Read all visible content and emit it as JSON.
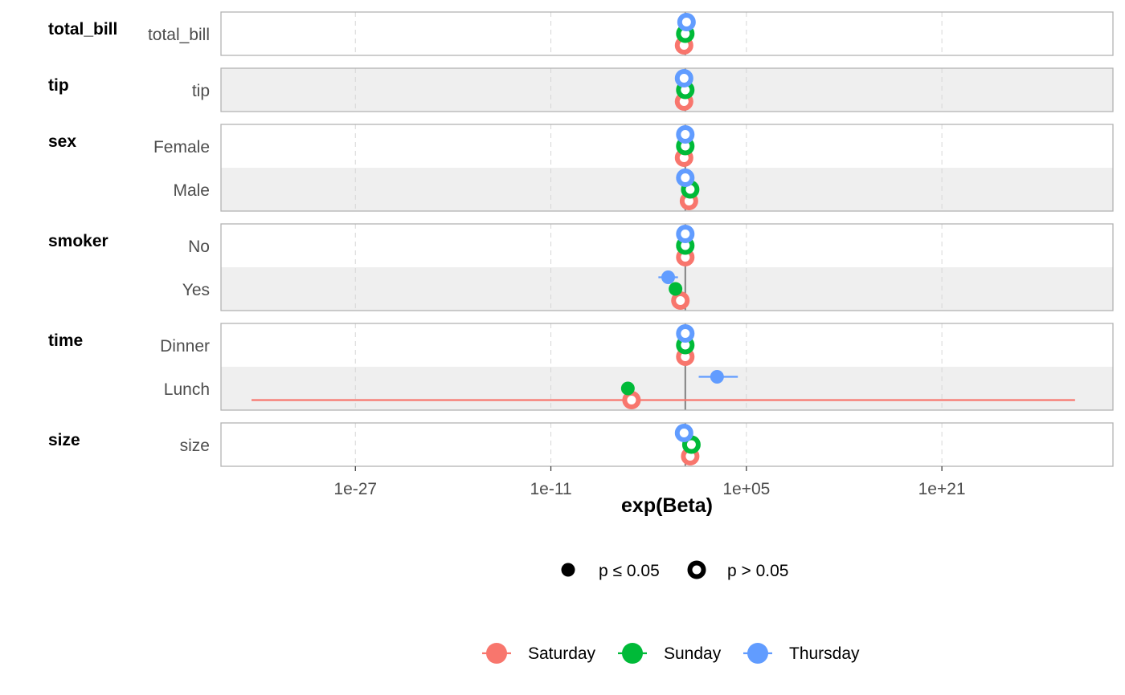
{
  "chart_data": {
    "type": "forest",
    "xlabel": "exp(Beta)",
    "x_scale": "log10",
    "xlim_log10": [
      -38,
      35
    ],
    "x_ticks": [
      {
        "value_log10": -27,
        "label": "1e-27"
      },
      {
        "value_log10": -11,
        "label": "1e-11"
      },
      {
        "value_log10": 5,
        "label": "1e+05"
      },
      {
        "value_log10": 21,
        "label": "1e+21"
      }
    ],
    "reference_line": 1,
    "grid": "vertical-dashed",
    "series": [
      {
        "name": "Saturday",
        "color": "#F8766D"
      },
      {
        "name": "Sunday",
        "color": "#00BA38"
      },
      {
        "name": "Thursday",
        "color": "#619CFF"
      }
    ],
    "significance_legend": [
      {
        "label": "p ≤ 0.05",
        "shape": "filled"
      },
      {
        "label": "p > 0.05",
        "shape": "hollow"
      }
    ],
    "legend_position": "bottom",
    "groups": [
      {
        "name": "total_bill",
        "terms": [
          {
            "label": "total_bill",
            "estimates": [
              {
                "series": "Saturday",
                "log10": -0.1,
                "lo": -0.2,
                "hi": 0.1,
                "significant": false
              },
              {
                "series": "Sunday",
                "log10": 0.0,
                "lo": -0.1,
                "hi": 0.1,
                "significant": false
              },
              {
                "series": "Thursday",
                "log10": 0.1,
                "lo": 0.0,
                "hi": 0.2,
                "significant": false
              }
            ]
          }
        ]
      },
      {
        "name": "tip",
        "terms": [
          {
            "label": "tip",
            "estimates": [
              {
                "series": "Saturday",
                "log10": -0.1,
                "lo": -0.4,
                "hi": 0.3,
                "significant": false
              },
              {
                "series": "Sunday",
                "log10": 0.0,
                "lo": -0.3,
                "hi": 0.3,
                "significant": false
              },
              {
                "series": "Thursday",
                "log10": -0.1,
                "lo": -0.4,
                "hi": 0.2,
                "significant": false
              }
            ]
          }
        ]
      },
      {
        "name": "sex",
        "terms": [
          {
            "label": "Female",
            "estimates": [
              {
                "series": "Saturday",
                "log10": -0.1,
                "lo": -0.5,
                "hi": 0.3,
                "significant": false
              },
              {
                "series": "Sunday",
                "log10": 0.0,
                "lo": -0.4,
                "hi": 0.4,
                "significant": false
              },
              {
                "series": "Thursday",
                "log10": 0.0,
                "lo": -0.4,
                "hi": 0.4,
                "significant": false
              }
            ]
          },
          {
            "label": "Male",
            "estimates": [
              {
                "series": "Saturday",
                "log10": 0.3,
                "lo": -0.2,
                "hi": 0.8,
                "significant": false
              },
              {
                "series": "Sunday",
                "log10": 0.4,
                "lo": 0.0,
                "hi": 0.8,
                "significant": false
              },
              {
                "series": "Thursday",
                "log10": 0.0,
                "lo": -0.4,
                "hi": 0.4,
                "significant": false
              }
            ]
          }
        ]
      },
      {
        "name": "smoker",
        "terms": [
          {
            "label": "No",
            "estimates": [
              {
                "series": "Saturday",
                "log10": 0.0,
                "lo": -0.3,
                "hi": 0.3,
                "significant": false
              },
              {
                "series": "Sunday",
                "log10": 0.0,
                "lo": -0.3,
                "hi": 0.3,
                "significant": false
              },
              {
                "series": "Thursday",
                "log10": 0.0,
                "lo": -0.3,
                "hi": 0.3,
                "significant": false
              }
            ]
          },
          {
            "label": "Yes",
            "estimates": [
              {
                "series": "Saturday",
                "log10": -0.4,
                "lo": -0.8,
                "hi": 0.0,
                "significant": false
              },
              {
                "series": "Sunday",
                "log10": -0.8,
                "lo": -1.0,
                "hi": -0.5,
                "significant": true
              },
              {
                "series": "Thursday",
                "log10": -1.4,
                "lo": -2.2,
                "hi": -0.6,
                "significant": true
              }
            ]
          }
        ]
      },
      {
        "name": "time",
        "terms": [
          {
            "label": "Dinner",
            "estimates": [
              {
                "series": "Saturday",
                "log10": 0.0,
                "lo": -0.3,
                "hi": 0.3,
                "significant": false
              },
              {
                "series": "Sunday",
                "log10": 0.0,
                "lo": -0.3,
                "hi": 0.3,
                "significant": false
              },
              {
                "series": "Thursday",
                "log10": 0.0,
                "lo": -0.3,
                "hi": 0.3,
                "significant": false
              }
            ]
          },
          {
            "label": "Lunch",
            "estimates": [
              {
                "series": "Saturday",
                "log10": -4.4,
                "lo": -35.5,
                "hi": 31.9,
                "significant": false
              },
              {
                "series": "Sunday",
                "log10": -4.7,
                "lo": -4.9,
                "hi": -4.5,
                "significant": true
              },
              {
                "series": "Thursday",
                "log10": 2.6,
                "lo": 1.1,
                "hi": 4.3,
                "significant": true
              }
            ]
          }
        ]
      },
      {
        "name": "size",
        "terms": [
          {
            "label": "size",
            "estimates": [
              {
                "series": "Saturday",
                "log10": 0.4,
                "lo": 0.0,
                "hi": 0.8,
                "significant": false
              },
              {
                "series": "Sunday",
                "log10": 0.5,
                "lo": 0.1,
                "hi": 0.9,
                "significant": false
              },
              {
                "series": "Thursday",
                "log10": -0.1,
                "lo": -0.5,
                "hi": 0.3,
                "significant": false
              }
            ]
          }
        ]
      }
    ]
  }
}
